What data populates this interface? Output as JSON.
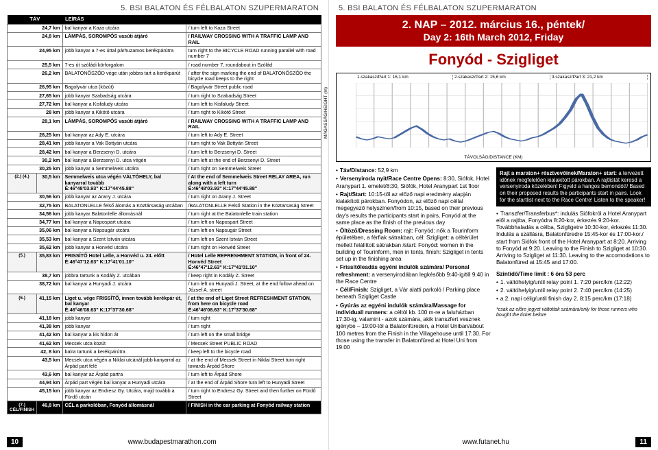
{
  "header_left": "5. BSI BALATON ÉS FÉLBALATON SZUPERMARATON",
  "header_right": "5. BSI BALATON ÉS FÉLBALATON SZUPERMARATON",
  "footer_left_page": "10",
  "footer_left_url": "www.budapestmarathon.com",
  "footer_right_url": "www.futanet.hu",
  "footer_right_page": "11",
  "route": {
    "th_dist": "TÁV",
    "th_desc": "LEÍRÁS",
    "rows": [
      {
        "d": "24,7 km",
        "hu": "bal kanyar a Kaza utcára",
        "en": "/ turn left to Kaza Street"
      },
      {
        "d": "24,8 km",
        "hu": "LÁMPÁS, SOROMPÓS vasúti átjáró",
        "en": "/ RAILWAY CROSSING WITH A TRAFFIC LAMP AND RAIL",
        "hl": true
      },
      {
        "d": "24,95 km",
        "hu": "jobb kanyar a 7-es úttal párhuzamos kerékpárútra",
        "en": "turn right to the BICYCLE ROAD running parallel with road number 7"
      },
      {
        "d": "25,5 km",
        "hu": "7-es út szóládi körforgalom",
        "en": "/ road number 7, roundabout in Szólád"
      },
      {
        "d": "26,2 km",
        "hu": "BALATONŐSZÖD vége után jobbra tart a kerékpárút",
        "en": "/ after the sign marking the end of BALATONŐSZÖD the bicycle road keeps to the right"
      },
      {
        "d": "26,95 km",
        "hu": "Bagolyvár utca (közút)",
        "en": "/ Bagolyvár Street public road"
      },
      {
        "d": "27,65 km",
        "hu": "jobb kanyar Szabadság utcára",
        "en": "/ turn right to Szabadság Street"
      },
      {
        "d": "27,72 km",
        "hu": "bal kanyar a Kisfaludy utcára",
        "en": "/ turn left to Kisfaludy Street"
      },
      {
        "d": "28 km",
        "hu": "jobb kanyar a Kikötő utcára",
        "en": "/ turn right to Kikötő Street"
      },
      {
        "d": "28,1 km",
        "hu": "LÁMPÁS, SOROMPÓS vasúti átjáró",
        "en": "/ RAILWAY CROSSING WITH A TRAFFIC LAMP AND RAIL",
        "hl": true
      },
      {
        "d": "28,25 km",
        "hu": "bal kanyar az Ady E. utcára",
        "en": "/ turn left to Ady E. Street"
      },
      {
        "d": "28,41 km",
        "hu": "jobb kanyar a Vak Bottyán utcára",
        "en": "/ turn right to Vak Bottyán Street"
      },
      {
        "d": "28,42 km",
        "hu": "bal kanyar a Berzsenyi D. utcára",
        "en": "/ turn left to Berzsenyi D. Street"
      },
      {
        "d": "30,2 km",
        "hu": "bal kanyar a Berzsenyi D. utca végén",
        "en": "/ turn left at the end of Berzsenyi D. Street"
      },
      {
        "d": "30,25 km",
        "hu": "jobb kanyar a Semmelweis utcára",
        "en": "/ turn right on Semmelweis Street"
      },
      {
        "mark": "(2.) (4.)",
        "d": "30,5 km",
        "hu": "Semmelweis utca végén VÁLTÓHELY, bal kanyarral tovább\nÉ:46°48'03.93\" K:17°44'45.88\"",
        "en": "/ At the end of Semmelweis Street RELAY AREA, run along with a left turn\nÉ:46°48'03.93\" K:17°44'45.88\"",
        "hl": true,
        "shade": true
      },
      {
        "d": "30,56 km",
        "hu": "jobb kanyar az Arany J. utcára",
        "en": "/ turn right on Arany J. Street"
      },
      {
        "d": "32,75 km",
        "hu": "BALATONLELLE felső álomás a Köztársaság utcában",
        "en": "/BALATONLELLE Felső Station in the Köztarsaság Street"
      },
      {
        "d": "34,56 km",
        "hu": "jobb kanyar Balatonlelle állomásnál",
        "en": "/ turn right at the Balatonlelle train station"
      },
      {
        "d": "34,77 km",
        "hu": "bal kanyar a Napospart utcára",
        "en": "/ turn left on Napospart Street"
      },
      {
        "d": "35,06 km",
        "hu": "bal kanyar a Napsugár utcára",
        "en": "/ turn left on Napsugár Street"
      },
      {
        "d": "35,53 km",
        "hu": "bal kanyar a Szent István utcára",
        "en": "/ turn left on Szent István Street"
      },
      {
        "d": "35,62 km",
        "hu": "jobb kanyar a Honvéd utcára",
        "en": "/ turn right on Honvéd Street"
      },
      {
        "mark": "(5.)",
        "d": "35,83 km",
        "hu": "FRISSÍTŐ Hotel Lelle, a Honvéd u. 24. előtt\nÉ:46°47'12.63\" K:17°41'01.10\"",
        "en": "/ Hotel Lelle REFRESHMENT STATION, in front of 24. Honvéd Street\nÉ:46°47'12.63\" K:17°41'01.10\"",
        "hl": true,
        "shade": true
      },
      {
        "d": "38,7 km",
        "hu": "jobbra tartunk a Kodály Z. utcában",
        "en": "/ keep right in Kodály Z. Street"
      },
      {
        "d": "38,72 km",
        "hu": "bal kanyar a Hunyadi J. utcára",
        "en": "/ turn left on Hunyadi J. Street, at the end follow ahead on József A. street"
      },
      {
        "mark": "(6.)",
        "d": "41,15 km",
        "hu": "Liget u. vége FRISSÍTŐ, innen tovább kerékpár út, bal kanyar\nÉ:46°46'08.63\" K:17°37'30.68\"",
        "en": "/ at the end of Liget Street REFRESHMENT STATION, from here on bicycle road\nÉ:46°46'08.63\" K:17°37'30.68\"",
        "hl": true,
        "shade": true
      },
      {
        "d": "41,18 km",
        "hu": "jobb kanyar",
        "en": "/ turn right"
      },
      {
        "d": "41,38 km",
        "hu": "jobb kanyar",
        "en": "/ turn right"
      },
      {
        "d": "41,42 km",
        "hu": "bal kanyar a kis hídon át",
        "en": "/ turn left on the small bridge"
      },
      {
        "d": "41,62 km",
        "hu": "Mecsek utca közút",
        "en": "/ Mecsek Street PUBLIC ROAD"
      },
      {
        "d": "42, 8 km",
        "hu": "balra tartunk a kerékpárútra",
        "en": "/ keep left to the bicycle road"
      },
      {
        "d": "43,5 km",
        "hu": "Mecsek utca végén a Niklai utcánál jobb kanyarral az Árpád part felé",
        "en": "/ at the end of Mecsek Street in Niklai Street turn right towards Árpád Shore"
      },
      {
        "d": "43,6 km",
        "hu": "bal kanyar az Árpád partra",
        "en": "/ turn left to Árpád Shore"
      },
      {
        "d": "44,94 km",
        "hu": "Árpád part végén bal kanyar a Hunyadi utcára",
        "en": "/ at the end of Árpád Shore turn left to Hunyadi Street"
      },
      {
        "d": "45,15 km",
        "hu": "jobb kanyar az Endresz Gy. Utcára, majd tovább a Fürdő utcán",
        "en": "/ turn right to Endresz Gy. Street and then further on Fürdő Street"
      },
      {
        "mark": "(7.)\nCÉL/FINISH",
        "d": "46,8 km",
        "hu": "CÉL a parkolóban, Fonyód állomásnál",
        "en": "/ FINISH in the car parking at Fonyód railway station",
        "black": true
      }
    ]
  },
  "right": {
    "red1": "2. NAP – 2012. március 16., péntek/",
    "red2": "Day 2: 16th March 2012, Friday",
    "stage_title": "Fonyód - Szigliget",
    "chart": {
      "segments": [
        "1.szakasz/Part 1: 16,1 km",
        "2.szakasz/Part 2: 15,6 km",
        "3.szakasz/Part 3: 21,2 km"
      ],
      "ylabel": "MAGASSÁG/HEIGHT (m)",
      "xlabel": "TÁVOLSÁG/DISTANCE (KM)",
      "y_ticks": [
        100,
        112,
        124,
        136,
        148,
        160
      ],
      "x_ticks": [
        0.0,
        3.3,
        6.7,
        10.0,
        13.3,
        16.7,
        20.0,
        23.3,
        26.7,
        30.0,
        33.3,
        36.7,
        40.0,
        43.3,
        46.7,
        50.0,
        52.9
      ],
      "line_color": "#4a6aa5",
      "grid_color": "#c0c0c0",
      "background_color": "#ffffff",
      "profile": [
        110,
        108,
        107,
        108,
        110,
        109,
        108,
        109,
        112,
        115,
        118,
        120,
        117,
        113,
        110,
        108,
        107,
        108,
        106,
        105,
        106,
        108,
        110,
        112,
        114,
        115,
        113,
        110,
        108,
        107,
        106,
        107,
        109,
        110,
        112,
        115,
        118,
        122,
        128,
        135,
        145,
        150,
        140,
        128,
        118,
        112,
        108,
        106,
        105,
        104,
        105,
        107,
        110,
        112
      ]
    },
    "col_left": [
      "<b>Táv/Distance:</b> 52,9 km",
      "<b>Versenyiroda nyit/Race Centre Opens:</b> 8:30, Siófok, Hotel Aranypart 1. emelet/8:30, Siófók, Hotel Aranypart 1st floor",
      "<b>Rajt/Start:</b> 10:15-től az előző napi eredmény alapján kialakított párokban. Fonyódon, az előző napi céllal megegyező helyszínen/from 10:15, based on their previous day's results the participants start in pairs, Fonyód at the same place as the finish of the previous day",
      "<b>Öltöző/Dressing Room:</b> rajt: Fonyód: nők a Tourinform épületében, a férfiak sátrakban, cél: Szigliget: a céltérület mellett felállított sátrakban /start: Fonyód: women in the building of Tourinform, men in tents, finish: Szigliget in tents set up in the finishing area",
      "<b>Frissítőleadás egyéni indulók számára/ Personal refreshment:</b> a versenyirodában legkésőbb 9:40-ig/till 9:40 in the Race Centre",
      "<b>Cél/Finish:</b> Szigliget, a Vár alatti parkoló / Parking place beneath Szigliget Castle",
      "<b>Gyúrás az egyéni indulók számára/Massage for individuall runners:</b> a céltól kb. 100 m-re a faluházban 17:30-ig, valamint - azok számára, akik transzfert vesznek igénybe – 19:00-tól a Balatonfüreden, a Hotel Uniban/about 100 metres from the Finish in the Villagehouse until 17:30. For those using the transfer in Balatonfüred at Hotel Uni from 19:00"
    ],
    "black_box": "<b>Rajt a maraton+ résztvevőinek/Maraton+ start:</b> a tervezett időnek megfelelően kialakított párokban. A rajtlistát keresd a versenyiroda közelében! Figyeld a hangos bemondót!/ Based on their proposed results the participants start in pairs. Look for the startlist next to the Race Centre! Listen to the speaker!",
    "col_right": [
      "Transzfer/Transferbus*: indulás Siófokról a Hotel Aranypart elől a rajtba, Fonyódra 8:20-kor, érkezés 9:20-kor. Továbbhaladás a célba, Szigligetre 10:30-kor, érkezés 11:30. Indulás a szállásra, Balatonfüredre 15:45-kor és 17:00-kor./ start from Siófok front of the Hotel Aranypart at 8:20. Arriving to Fonyód at 9:20. Leaving to the Finish to Szigliget at 10:30. Arriving to Szigliget at 11:30. Leaving to the accomodations to Balatonfüred at 15:45 and 17:00."
    ],
    "time_limit_head": "Szintidő/Time limit : 6 óra 53 perc",
    "time_limit_items": [
      "1. váltóhelyig/until relay point 1. 7:20 perc/km (12:22)",
      "2. váltóhelyig/until relay point 2. 7:40 perc/km (14:25)",
      "a 2. napi célig/until finish day 2. 8:15 perc/km (17:18)"
    ],
    "footnote": "*csak az előre jegyet váltottak számára/only for those runners who bought the ticket before"
  }
}
